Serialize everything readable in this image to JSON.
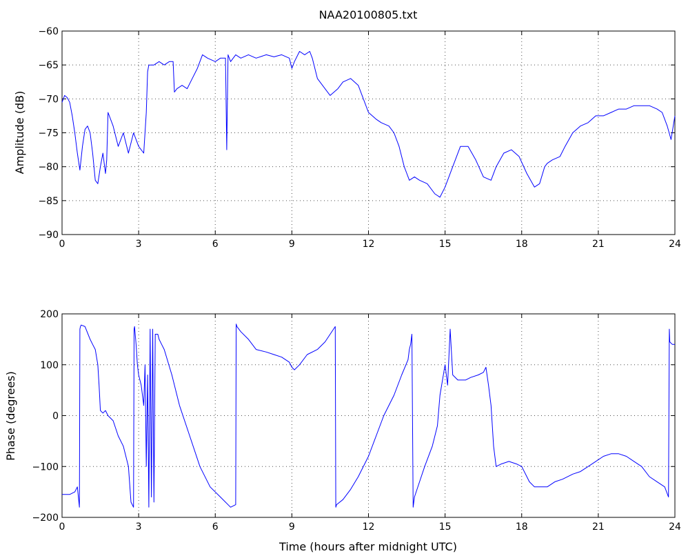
{
  "chart_data": [
    {
      "type": "line",
      "title": "NAA20100805.txt",
      "xlabel": "",
      "ylabel": "Amplitude (dB)",
      "xlim": [
        0,
        24
      ],
      "ylim": [
        -90,
        -60
      ],
      "xticks": [
        "0",
        "3",
        "6",
        "9",
        "12",
        "15",
        "18",
        "21",
        "24"
      ],
      "yticks": [
        "-90",
        "-85",
        "-80",
        "-75",
        "-70",
        "-65",
        "-60"
      ],
      "grid": true,
      "line_color": "#0000ff",
      "series": [
        {
          "x": [
            0,
            0.1,
            0.2,
            0.3,
            0.4,
            0.5,
            0.6,
            0.7,
            0.8,
            0.9,
            1.0,
            1.1,
            1.2,
            1.3,
            1.4,
            1.5,
            1.6,
            1.7,
            1.75,
            1.8,
            2.0,
            2.2,
            2.4,
            2.6,
            2.8,
            3.0,
            3.2,
            3.3,
            3.35,
            3.4,
            3.6,
            3.8,
            4.0,
            4.2,
            4.35,
            4.4,
            4.5,
            4.7,
            4.9,
            5.1,
            5.3,
            5.5,
            5.7,
            6.0,
            6.2,
            6.4,
            6.45,
            6.5,
            6.6,
            6.8,
            7.0,
            7.3,
            7.6,
            8.0,
            8.3,
            8.6,
            8.9,
            9.0,
            9.1,
            9.3,
            9.5,
            9.7,
            9.8,
            10.0,
            10.2,
            10.5,
            10.8,
            11.0,
            11.3,
            11.6,
            11.8,
            12.0,
            12.3,
            12.5,
            12.8,
            13.0,
            13.2,
            13.4,
            13.5,
            13.6,
            13.8,
            14.0,
            14.3,
            14.6,
            14.8,
            15.0,
            15.3,
            15.6,
            15.9,
            16.2,
            16.5,
            16.8,
            17.0,
            17.3,
            17.6,
            17.9,
            18.2,
            18.5,
            18.7,
            18.9,
            19.0,
            19.2,
            19.5,
            19.7,
            20.0,
            20.3,
            20.6,
            20.9,
            21.2,
            21.5,
            21.8,
            22.1,
            22.4,
            22.7,
            23.0,
            23.3,
            23.5,
            23.7,
            23.85,
            24.0
          ],
          "y": [
            -70.5,
            -69.5,
            -69.8,
            -70.5,
            -72.5,
            -75,
            -78,
            -80.5,
            -77,
            -74.5,
            -74,
            -75,
            -78,
            -82,
            -82.5,
            -80,
            -78,
            -81,
            -79,
            -72,
            -74,
            -77,
            -75,
            -78,
            -75,
            -77,
            -78,
            -72,
            -66,
            -65,
            -65,
            -64.5,
            -65,
            -64.5,
            -64.5,
            -69,
            -68.5,
            -68,
            -68.5,
            -67,
            -65.5,
            -63.5,
            -64,
            -64.5,
            -64,
            -64,
            -77.5,
            -63.5,
            -64.5,
            -63.5,
            -64,
            -63.5,
            -64,
            -63.5,
            -63.8,
            -63.5,
            -64,
            -65.5,
            -64.5,
            -63,
            -63.5,
            -63,
            -64,
            -67,
            -68,
            -69.5,
            -68.5,
            -67.5,
            -67,
            -68,
            -70,
            -72,
            -73,
            -73.5,
            -74,
            -75,
            -77,
            -80,
            -81,
            -82,
            -81.5,
            -82,
            -82.5,
            -84,
            -84.5,
            -83,
            -80,
            -77,
            -77,
            -79,
            -81.5,
            -82,
            -80,
            -78,
            -77.5,
            -78.5,
            -81,
            -83,
            -82.5,
            -80,
            -79.5,
            -79,
            -78.5,
            -77,
            -75,
            -74,
            -73.5,
            -72.5,
            -72.5,
            -72,
            -71.5,
            -71.5,
            -71,
            -71,
            -71,
            -71.5,
            -72,
            -74,
            -76,
            -72.5
          ]
        }
      ]
    },
    {
      "type": "line",
      "title": "",
      "xlabel": "Time (hours after midnight UTC)",
      "ylabel": "Phase (degrees)",
      "xlim": [
        0,
        24
      ],
      "ylim": [
        -200,
        200
      ],
      "xticks": [
        "0",
        "3",
        "6",
        "9",
        "12",
        "15",
        "18",
        "21",
        "24"
      ],
      "yticks": [
        "-200",
        "-100",
        "0",
        "100",
        "200"
      ],
      "grid": true,
      "line_color": "#0000ff",
      "series": [
        {
          "x": [
            0,
            0.3,
            0.5,
            0.6,
            0.68,
            0.7,
            0.72,
            0.75,
            0.9,
            1.1,
            1.2,
            1.3,
            1.4,
            1.45,
            1.5,
            1.6,
            1.7,
            1.8,
            2.0,
            2.2,
            2.4,
            2.6,
            2.7,
            2.8,
            2.82,
            2.84,
            2.9,
            2.95,
            3.0,
            3.1,
            3.2,
            3.25,
            3.3,
            3.35,
            3.4,
            3.45,
            3.5,
            3.55,
            3.6,
            3.65,
            3.7,
            3.75,
            3.8,
            3.9,
            4.0,
            4.3,
            4.6,
            5.0,
            5.4,
            5.8,
            6.2,
            6.6,
            6.8,
            6.82,
            6.85,
            7.0,
            7.3,
            7.6,
            8.0,
            8.3,
            8.6,
            8.9,
            9.0,
            9.1,
            9.3,
            9.6,
            10.0,
            10.3,
            10.5,
            10.7,
            10.72,
            10.75,
            11.0,
            11.3,
            11.6,
            12.0,
            12.3,
            12.6,
            13.0,
            13.3,
            13.55,
            13.6,
            13.65,
            13.7,
            13.75,
            13.8,
            14.0,
            14.2,
            14.5,
            14.7,
            14.8,
            15.0,
            15.1,
            15.2,
            15.3,
            15.5,
            15.8,
            16.0,
            16.3,
            16.5,
            16.6,
            16.7,
            16.8,
            16.9,
            17.0,
            17.2,
            17.5,
            17.8,
            18.0,
            18.3,
            18.5,
            18.8,
            19.0,
            19.3,
            19.6,
            20.0,
            20.3,
            20.6,
            20.9,
            21.2,
            21.5,
            21.8,
            22.1,
            22.4,
            22.7,
            23.0,
            23.3,
            23.6,
            23.75,
            23.78,
            23.8,
            23.9,
            24.0
          ],
          "y": [
            -155,
            -155,
            -150,
            -140,
            -180,
            170,
            175,
            178,
            175,
            150,
            140,
            130,
            100,
            60,
            10,
            5,
            10,
            0,
            -10,
            -40,
            -60,
            -100,
            -170,
            -180,
            170,
            175,
            140,
            100,
            80,
            60,
            20,
            100,
            -100,
            80,
            -180,
            170,
            -160,
            170,
            -170,
            160,
            160,
            160,
            150,
            140,
            130,
            80,
            20,
            -40,
            -100,
            -140,
            -160,
            -180,
            -175,
            180,
            175,
            165,
            150,
            130,
            125,
            120,
            115,
            105,
            95,
            90,
            100,
            120,
            130,
            145,
            160,
            175,
            -180,
            -175,
            -165,
            -145,
            -120,
            -80,
            -40,
            0,
            40,
            80,
            110,
            130,
            140,
            160,
            -180,
            -160,
            -130,
            -100,
            -60,
            -20,
            40,
            100,
            60,
            170,
            80,
            70,
            70,
            75,
            80,
            85,
            95,
            60,
            20,
            -60,
            -100,
            -95,
            -90,
            -95,
            -100,
            -130,
            -140,
            -140,
            -140,
            -130,
            -125,
            -115,
            -110,
            -100,
            -90,
            -80,
            -75,
            -75,
            -80,
            -90,
            -100,
            -120,
            -130,
            -140,
            -160,
            170,
            145,
            140,
            140
          ]
        }
      ]
    }
  ]
}
